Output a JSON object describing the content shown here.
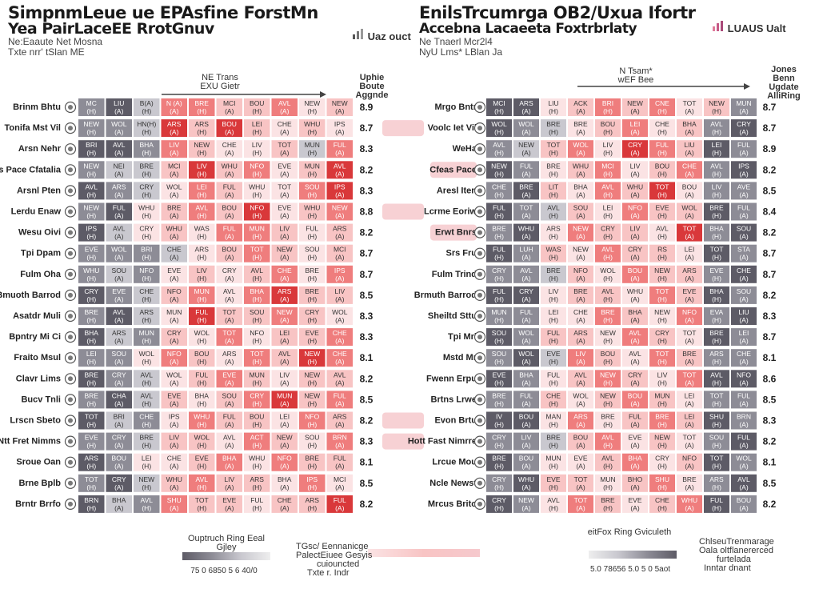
{
  "header": {
    "left_title": "SimpnmLeue ue EPAsfine ForstMn",
    "left_subtitle": "Yea PairLaceEE RrotGnuv",
    "left_line3": "Ne:Eaaute Net Mosna",
    "left_line4": "Txte nrr' tSlan ME",
    "right_title": "EnilsTrcumrga OB2/Uxua Ifortr",
    "right_subtitle": "Accebna Lacaeeta Foxtrbrlaty",
    "right_line3": "Ne Tnaerl Mcr2l4",
    "right_line4": "NyU Lms* LBlan Ja",
    "brand_left": "Uaz ouct",
    "brand_right": "LUAUS Ualt"
  },
  "annotations": {
    "left_arrow": "NE Trans\nEXU Gietr",
    "left_col_head": "Uphie Boute Aggnde",
    "right_arrow": "N Tsam*\nwEF Bee",
    "right_col_head": "Jones Benn Ugdate AlliRing"
  },
  "legends": {
    "left_title": "Ouptruch Ring Eeal Gjley",
    "left_ticks": "75 0 6850 5 6 40/0",
    "mid_line1": "TGsc/ Eennanicge",
    "mid_line2": "PalectEiuee Gesyis",
    "mid_line3": "cuiouncted",
    "mid_line4": "Txte r. Indr",
    "right_title": "eitFox Ring Gviculeth",
    "right_ticks": "5.0 78656 5.0 5 0 5aot",
    "far_line1": "ChlseuTrenmarage",
    "far_line2": "Oala oltflanererced",
    "far_line3": "furtelada",
    "far_line4": "Inntar dnant"
  },
  "colors": {
    "high_red": "#d9383a",
    "mid_red": "#ef7d7d",
    "low_pink": "#f8c4c4",
    "pale_pink": "#fbe3e4",
    "neutral_grey": "#8d8c96",
    "dark_grey": "#5d5b66",
    "light_grey": "#c9c8cf",
    "pill_pink": "#f6c9cd"
  },
  "chart_data": [
    {
      "type": "heatmap",
      "title": "SimpnmLeue ue EPAsfine ForstMn",
      "teams": [
        "Brinm Bhtu",
        "Tonifa Mst Vil",
        "Arsn Nehr",
        "vs Pace Cfatalia",
        "Arsnl Pten",
        "Lerdu Enaw",
        "Wesu Oivi",
        "Tpi Dpam",
        "Fulm Oha",
        "Bmuoth Barrod",
        "Asatdr Muli",
        "Bpntry Mi Ci",
        "Fraito Msul",
        "Clavr Lims",
        "Bucv Tnli",
        "Lrscn Sbeto",
        "Ntt Fret Nimms",
        "Sroue Oan",
        "Brne Bplb",
        "Brntr Brrfo"
      ],
      "ratings": [
        8.9,
        8.7,
        8.3,
        8.2,
        8.3,
        8.8,
        8.2,
        8.7,
        8.7,
        8.5,
        8.3,
        8.3,
        8.1,
        8.2,
        8.5,
        8.2,
        8.3,
        8.1,
        8.5,
        8.2
      ],
      "pill": [
        false,
        true,
        false,
        false,
        false,
        true,
        false,
        false,
        false,
        false,
        false,
        false,
        false,
        false,
        false,
        true,
        true,
        false,
        false,
        false
      ],
      "values": [
        [
          1,
          0,
          2,
          5,
          5,
          4,
          4,
          5,
          3,
          4
        ],
        [
          1,
          1,
          2,
          6,
          4,
          6,
          4,
          3,
          4,
          3
        ],
        [
          0,
          0,
          1,
          5,
          4,
          3,
          3,
          4,
          2,
          5
        ],
        [
          1,
          2,
          2,
          4,
          6,
          4,
          5,
          3,
          4,
          6
        ],
        [
          0,
          1,
          2,
          3,
          5,
          4,
          3,
          3,
          5,
          6
        ],
        [
          1,
          0,
          3,
          4,
          5,
          4,
          6,
          3,
          4,
          5
        ],
        [
          0,
          2,
          3,
          4,
          3,
          5,
          5,
          4,
          3,
          4
        ],
        [
          1,
          1,
          1,
          2,
          3,
          4,
          5,
          4,
          3,
          4
        ],
        [
          1,
          2,
          1,
          3,
          4,
          3,
          4,
          5,
          3,
          5
        ],
        [
          0,
          1,
          2,
          4,
          5,
          3,
          5,
          6,
          4,
          4
        ],
        [
          1,
          0,
          2,
          3,
          6,
          4,
          4,
          5,
          4,
          3
        ],
        [
          0,
          2,
          1,
          4,
          3,
          5,
          3,
          4,
          4,
          5
        ],
        [
          1,
          1,
          3,
          5,
          4,
          3,
          5,
          4,
          6,
          5
        ],
        [
          0,
          1,
          2,
          3,
          4,
          5,
          4,
          3,
          4,
          4
        ],
        [
          1,
          0,
          2,
          4,
          3,
          4,
          5,
          6,
          4,
          5
        ],
        [
          0,
          2,
          1,
          3,
          5,
          4,
          4,
          3,
          5,
          4
        ],
        [
          1,
          1,
          2,
          4,
          4,
          3,
          5,
          4,
          3,
          5
        ],
        [
          0,
          1,
          3,
          3,
          4,
          5,
          3,
          5,
          4,
          4
        ],
        [
          1,
          0,
          2,
          4,
          5,
          4,
          4,
          3,
          5,
          3
        ],
        [
          0,
          2,
          1,
          5,
          4,
          4,
          3,
          4,
          4,
          6
        ]
      ],
      "fixtures": [
        [
          "MC",
          "LIU",
          "B(A)",
          "N (A)",
          "BRE",
          "MCI",
          "BOU",
          "AVL",
          "NEW",
          "NEW"
        ],
        [
          "NEW",
          "WOL",
          "HN(H)",
          "ARS",
          "ARS",
          "BOU",
          "LEI",
          "CHE",
          "WHU",
          "IPS"
        ],
        [
          "BRI",
          "AVL",
          "BHA",
          "LIV",
          "NEW",
          "CHE",
          "LIV",
          "TOT",
          "MUN",
          "FUL"
        ],
        [
          "NEW",
          "NEI",
          "BRE",
          "MCI",
          "LIV",
          "WHU",
          "NFO",
          "EVE",
          "MUN",
          "AVL"
        ],
        [
          "AVL",
          "ARS",
          "CRY",
          "WOL",
          "LEI",
          "FUL",
          "WHU",
          "TOT",
          "SOU",
          "IPS"
        ],
        [
          "NEW",
          "FUL",
          "WHU",
          "BRE",
          "AVL",
          "BOU",
          "NFO",
          "EVE",
          "WHU",
          "NEW"
        ],
        [
          "IPS",
          "AVL",
          "CRY",
          "WHU",
          "WAS",
          "FUL",
          "MUN",
          "LIV",
          "FUL",
          "ARS"
        ],
        [
          "EVE",
          "WOL",
          "BRI",
          "CHE",
          "ARS",
          "BOU",
          "TOT",
          "NEW",
          "SOU",
          "MCI"
        ],
        [
          "WHU",
          "SOU",
          "NFO",
          "EVE",
          "LIV",
          "CRY",
          "AVL",
          "CHE",
          "BRE",
          "IPS"
        ],
        [
          "CRY",
          "EVE",
          "CHE",
          "NFO",
          "MUN",
          "AVL",
          "BHA",
          "ARS",
          "BRE",
          "LIV"
        ],
        [
          "BRE",
          "AVL",
          "ARS",
          "MUN",
          "FUL",
          "TOT",
          "SOU",
          "NEW",
          "CRY",
          "WOL"
        ],
        [
          "BHA",
          "ARS",
          "MUN",
          "CRY",
          "WOL",
          "TOT",
          "NFO",
          "LEI",
          "EVE",
          "CHE"
        ],
        [
          "LEI",
          "SOU",
          "WOL",
          "NFO",
          "BOU",
          "ARS",
          "TOT",
          "AVL",
          "NEW",
          "CHE"
        ],
        [
          "BRE",
          "CRY",
          "AVL",
          "WOL",
          "FUL",
          "EVE",
          "MUN",
          "LIV",
          "NEW",
          "AVL"
        ],
        [
          "BRE",
          "CHA",
          "AVL",
          "EVE",
          "BHA",
          "SOU",
          "CRY",
          "MUN",
          "NEW",
          "FUL"
        ],
        [
          "TOT",
          "BRI",
          "CHE",
          "IPS",
          "WHU",
          "FUL",
          "BOU",
          "LEI",
          "NFO",
          "ARS"
        ],
        [
          "EVE",
          "CRY",
          "BRE",
          "LIV",
          "WOL",
          "AVL",
          "ACT",
          "NEW",
          "SOU",
          "BRN"
        ],
        [
          "ARS",
          "BOU",
          "LEI",
          "CHE",
          "EVE",
          "BHA",
          "WHU",
          "NFO",
          "BRE",
          "FUL"
        ],
        [
          "TOT",
          "CRY",
          "NEW",
          "WHU",
          "AVL",
          "LIV",
          "ARS",
          "BHA",
          "IPS",
          "MCI"
        ],
        [
          "BRN",
          "BHA",
          "AVL",
          "SHU",
          "TOT",
          "EVE",
          "FUL",
          "CHE",
          "ARS",
          "FUL"
        ]
      ]
    },
    {
      "type": "heatmap",
      "title": "EnilsTrcumrga OB2/Uxua Ifortr",
      "teams": [
        "Mrgo Bntr",
        "Voolc Iet Vil",
        "WeHa",
        "Cfeas Pace",
        "Aresl Iten",
        "Lcrme Eoriw",
        "Erwt Bnrs",
        "Srs Fru",
        "Fulm Trind",
        "Brmuth Barrod",
        "Sheiltd Sttu",
        "Tpi Mrl",
        "Mstd Mr",
        "Fwenn Erpu",
        "Brtns Lrwe",
        "Evon Brtu",
        "Hott Fast Nimrre",
        "Lrcue Mou",
        "Ncle Newst",
        "Mrcus Brito"
      ],
      "ratings": [
        8.7,
        8.7,
        8.9,
        8.2,
        8.5,
        8.4,
        8.2,
        8.7,
        8.7,
        8.2,
        8.3,
        8.7,
        8.1,
        8.6,
        8.5,
        8.3,
        8.2,
        8.1,
        8.5,
        8.2
      ],
      "pill": [
        false,
        false,
        false,
        true,
        false,
        false,
        true,
        false,
        false,
        false,
        false,
        false,
        false,
        false,
        false,
        false,
        false,
        false,
        false,
        false
      ],
      "values": [
        [
          0,
          0,
          3,
          4,
          5,
          4,
          5,
          3,
          4,
          1
        ],
        [
          0,
          1,
          2,
          3,
          4,
          5,
          3,
          4,
          1,
          0
        ],
        [
          1,
          2,
          4,
          5,
          3,
          6,
          5,
          4,
          0,
          1
        ],
        [
          0,
          1,
          3,
          4,
          5,
          3,
          4,
          5,
          1,
          0
        ],
        [
          1,
          0,
          4,
          3,
          5,
          4,
          6,
          3,
          1,
          1
        ],
        [
          0,
          1,
          2,
          4,
          3,
          5,
          4,
          4,
          0,
          1
        ],
        [
          1,
          0,
          3,
          5,
          4,
          4,
          3,
          6,
          1,
          0
        ],
        [
          0,
          1,
          4,
          3,
          5,
          4,
          4,
          3,
          0,
          1
        ],
        [
          1,
          1,
          2,
          4,
          3,
          5,
          4,
          4,
          1,
          0
        ],
        [
          0,
          0,
          3,
          4,
          4,
          3,
          5,
          4,
          0,
          1
        ],
        [
          1,
          1,
          3,
          3,
          5,
          4,
          3,
          5,
          1,
          0
        ],
        [
          0,
          1,
          4,
          4,
          3,
          5,
          4,
          3,
          0,
          1
        ],
        [
          1,
          0,
          2,
          5,
          4,
          3,
          5,
          4,
          1,
          1
        ],
        [
          0,
          1,
          3,
          4,
          5,
          4,
          3,
          5,
          0,
          0
        ],
        [
          1,
          1,
          4,
          3,
          4,
          5,
          4,
          3,
          1,
          1
        ],
        [
          0,
          0,
          3,
          5,
          3,
          4,
          5,
          4,
          0,
          1
        ],
        [
          1,
          1,
          2,
          4,
          5,
          3,
          4,
          3,
          1,
          0
        ],
        [
          0,
          1,
          3,
          3,
          4,
          5,
          3,
          4,
          0,
          1
        ],
        [
          1,
          0,
          4,
          4,
          3,
          4,
          5,
          3,
          1,
          0
        ],
        [
          0,
          1,
          3,
          5,
          4,
          3,
          4,
          5,
          0,
          1
        ]
      ],
      "fixtures": [
        [
          "MCI",
          "ARS",
          "LIU",
          "ACK",
          "BRI",
          "NEW",
          "CNE",
          "TOT",
          "NEW",
          "MUN"
        ],
        [
          "WOL",
          "WOL",
          "BRE",
          "BRE",
          "BOU",
          "LEI",
          "CHE",
          "BHA",
          "AVL",
          "CRY"
        ],
        [
          "AVL",
          "NEW",
          "TOT",
          "WOL",
          "LIV",
          "CRY",
          "FUL",
          "LIU",
          "LEI",
          "FUL"
        ],
        [
          "NEW",
          "FUL",
          "BRE",
          "WHU",
          "MCI",
          "LIV",
          "BOU",
          "CHE",
          "AVL",
          "IPS"
        ],
        [
          "CHE",
          "BRE",
          "LIT",
          "BHA",
          "AVL",
          "WHU",
          "TOT",
          "BOU",
          "LIV",
          "AVE"
        ],
        [
          "FUL",
          "TOT",
          "AVL",
          "SOU",
          "LEI",
          "NFO",
          "EVE",
          "WOL",
          "BRE",
          "FUL"
        ],
        [
          "BRE",
          "WHU",
          "ARS",
          "NEW",
          "CRY",
          "LIV",
          "AVL",
          "TOT",
          "BHA",
          "SOU"
        ],
        [
          "FUL",
          "LUH",
          "WAS",
          "NEW",
          "AVL",
          "CRY",
          "RS",
          "LEI",
          "TOT",
          "STA"
        ],
        [
          "CRY",
          "AVL",
          "BRE",
          "NFO",
          "WOL",
          "BOU",
          "NEW",
          "ARS",
          "EVE",
          "CHE"
        ],
        [
          "FUL",
          "CRY",
          "LIV",
          "BRE",
          "AVL",
          "WHU",
          "TOT",
          "EVE",
          "BHA",
          "SOU"
        ],
        [
          "MUN",
          "FUL",
          "LEI",
          "CHE",
          "BRE",
          "BHA",
          "NEW",
          "NFO",
          "EVA",
          "LIU"
        ],
        [
          "SOU",
          "WOL",
          "FUL",
          "ARS",
          "NEW",
          "AVL",
          "CRY",
          "TOT",
          "BRE",
          "LEI"
        ],
        [
          "SOU",
          "WOL",
          "EVE",
          "LIV",
          "BOU",
          "AVL",
          "TOT",
          "BRE",
          "ARS",
          "CHE"
        ],
        [
          "EVE",
          "BHA",
          "FUL",
          "AVL",
          "NEW",
          "CRY",
          "LIV",
          "TOT",
          "AVL",
          "NFO"
        ],
        [
          "BRE",
          "FUL",
          "CHE",
          "WOL",
          "NEW",
          "BOU",
          "MUN",
          "LEI",
          "TOT",
          "FUL"
        ],
        [
          "IV",
          "BOU",
          "MAN",
          "ARS",
          "BRE",
          "FUL",
          "BRE",
          "LEI",
          "SHU",
          "BRN"
        ],
        [
          "CRY",
          "LIV",
          "BRE",
          "BOU",
          "AVL",
          "EVE",
          "NEW",
          "TOT",
          "SOU",
          "FUL"
        ],
        [
          "BRE",
          "BOU",
          "MUN",
          "EVE",
          "AVL",
          "BHA",
          "CRY",
          "NFO",
          "TOT",
          "WOL"
        ],
        [
          "CRY",
          "WHU",
          "EVE",
          "TOT",
          "MUN",
          "BHO",
          "SHU",
          "BRE",
          "ARS",
          "AVL"
        ],
        [
          "CRY",
          "NEW",
          "AVL",
          "TOT",
          "BRE",
          "EVE",
          "CHE",
          "WHU",
          "FUL",
          "BOU"
        ]
      ]
    }
  ]
}
